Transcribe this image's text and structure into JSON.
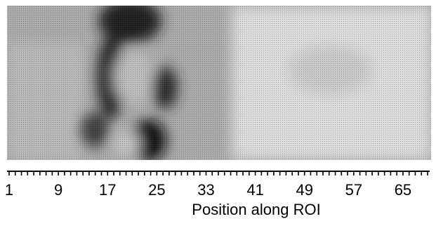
{
  "chart_data": {
    "type": "heatmap",
    "title": "",
    "xlabel": "Position along ROI",
    "ylabel": "",
    "x_range": [
      1,
      69
    ],
    "tick_labels": [
      "1",
      "9",
      "17",
      "25",
      "33",
      "41",
      "49",
      "57",
      "65"
    ],
    "tick_values": [
      1,
      9,
      17,
      25,
      33,
      41,
      49,
      57,
      65
    ],
    "minor_tick_step": 1,
    "colormap": "grayscale",
    "colors": {
      "background": "#ffffff",
      "dark": "#0a0a0a",
      "light": "#e6e6e6"
    }
  }
}
